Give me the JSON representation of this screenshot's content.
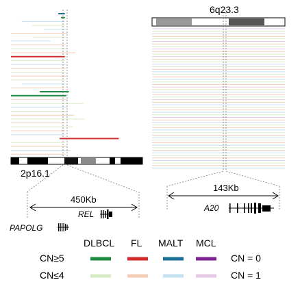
{
  "colors": {
    "DLBCL": "#1c8a3f",
    "FL": "#d32a2a",
    "MALT": "#1b6f96",
    "MCL": "#7c2291",
    "DLBCL_light": "#d7ebc6",
    "FL_light": "#f4cdb5",
    "MALT_light": "#c5e0f0",
    "MCL_light": "#e6c9e4"
  },
  "left_panel": {
    "region": "2p16.1",
    "span": "450Kb",
    "genes": [
      "REL",
      "PAPOLG"
    ],
    "segments": [
      {
        "row": 0,
        "start": 0.36,
        "end": 0.41,
        "cls": "MALT",
        "cn": "gain"
      },
      {
        "row": 1,
        "start": 0.38,
        "end": 0.41,
        "cls": "DLBCL",
        "cn": "gain"
      },
      {
        "row": 2,
        "start": 0.08,
        "end": 0.41,
        "cls": "MALT",
        "cn": "low"
      },
      {
        "row": 3,
        "start": 0.16,
        "end": 0.41,
        "cls": "DLBCL",
        "cn": "low"
      },
      {
        "row": 4,
        "start": 0.25,
        "end": 0.42,
        "cls": "MALT",
        "cn": "low"
      },
      {
        "row": 5,
        "start": 0.0,
        "end": 0.43,
        "cls": "FL",
        "cn": "low"
      },
      {
        "row": 6,
        "start": 0.17,
        "end": 0.42,
        "cls": "DLBCL",
        "cn": "low"
      },
      {
        "row": 7,
        "start": 0.0,
        "end": 0.3,
        "cls": "MALT",
        "cn": "low"
      },
      {
        "row": 8,
        "start": 0.0,
        "end": 0.41,
        "cls": "FL",
        "cn": "low"
      },
      {
        "row": 9,
        "start": 0.0,
        "end": 0.43,
        "cls": "DLBCL",
        "cn": "low"
      },
      {
        "row": 10,
        "start": 0.0,
        "end": 0.49,
        "cls": "FL",
        "cn": "low"
      },
      {
        "row": 11,
        "start": 0.0,
        "end": 0.41,
        "cls": "FL",
        "cn": "gain"
      },
      {
        "row": 12,
        "start": 0.0,
        "end": 0.41,
        "cls": "DLBCL",
        "cn": "low"
      },
      {
        "row": 13,
        "start": 0.0,
        "end": 0.42,
        "cls": "MALT",
        "cn": "low"
      },
      {
        "row": 14,
        "start": 0.0,
        "end": 0.42,
        "cls": "FL",
        "cn": "low"
      },
      {
        "row": 15,
        "start": 0.0,
        "end": 0.41,
        "cls": "DLBCL",
        "cn": "low"
      },
      {
        "row": 16,
        "start": 0.0,
        "end": 0.42,
        "cls": "FL",
        "cn": "low"
      },
      {
        "row": 17,
        "start": 0.0,
        "end": 0.41,
        "cls": "DLBCL",
        "cn": "low"
      },
      {
        "row": 18,
        "start": 0.08,
        "end": 0.41,
        "cls": "MALT",
        "cn": "low"
      },
      {
        "row": 19,
        "start": 0.0,
        "end": 0.41,
        "cls": "FL",
        "cn": "low"
      },
      {
        "row": 20,
        "start": 0.22,
        "end": 0.41,
        "cls": "DLBCL",
        "cn": "gain"
      },
      {
        "row": 20,
        "start": 0.41,
        "end": 0.44,
        "cls": "DLBCL",
        "cn": "gain"
      },
      {
        "row": 21,
        "start": 0.0,
        "end": 0.2,
        "cls": "DLBCL",
        "cn": "gain"
      },
      {
        "row": 21,
        "start": 0.2,
        "end": 0.42,
        "cls": "DLBCL",
        "cn": "gain"
      },
      {
        "row": 22,
        "start": 0.0,
        "end": 0.43,
        "cls": "FL",
        "cn": "low"
      },
      {
        "row": 23,
        "start": 0.0,
        "end": 0.55,
        "cls": "DLBCL",
        "cn": "low"
      },
      {
        "row": 24,
        "start": 0.0,
        "end": 0.43,
        "cls": "MALT",
        "cn": "low"
      },
      {
        "row": 25,
        "start": 0.0,
        "end": 0.43,
        "cls": "DLBCL",
        "cn": "low"
      },
      {
        "row": 26,
        "start": 0.0,
        "end": 0.48,
        "cls": "FL",
        "cn": "low"
      },
      {
        "row": 27,
        "start": 0.0,
        "end": 0.56,
        "cls": "DLBCL",
        "cn": "low"
      },
      {
        "row": 28,
        "start": 0.0,
        "end": 0.41,
        "cls": "FL",
        "cn": "low"
      },
      {
        "row": 29,
        "start": 0.0,
        "end": 0.47,
        "cls": "DLBCL",
        "cn": "low"
      },
      {
        "row": 30,
        "start": 0.0,
        "end": 0.41,
        "cls": "FL",
        "cn": "low"
      },
      {
        "row": 31,
        "start": 0.0,
        "end": 0.41,
        "cls": "MALT",
        "cn": "low"
      },
      {
        "row": 32,
        "start": 0.37,
        "end": 0.82,
        "cls": "FL",
        "cn": "gain"
      },
      {
        "row": 33,
        "start": 0.0,
        "end": 0.41,
        "cls": "DLBCL",
        "cn": "low"
      },
      {
        "row": 34,
        "start": 0.0,
        "end": 0.43,
        "cls": "FL",
        "cn": "low"
      },
      {
        "row": 35,
        "start": 0.0,
        "end": 0.45,
        "cls": "MALT",
        "cn": "low"
      },
      {
        "row": 36,
        "start": 0.0,
        "end": 0.41,
        "cls": "FL",
        "cn": "low"
      }
    ]
  },
  "right_panel": {
    "region": "6q23.3",
    "span": "143Kb",
    "gene": "A20",
    "segments": [
      {
        "row": 0,
        "start": 0.0,
        "end": 1.0,
        "cls": "MCL",
        "cn": "low"
      },
      {
        "row": 1,
        "start": 0.0,
        "end": 1.0,
        "cls": "DLBCL",
        "cn": "low"
      },
      {
        "row": 2,
        "start": 0.0,
        "end": 1.0,
        "cls": "MCL",
        "cn": "low"
      },
      {
        "row": 3,
        "start": 0.0,
        "end": 1.0,
        "cls": "FL",
        "cn": "low"
      },
      {
        "row": 4,
        "start": 0.0,
        "end": 1.0,
        "cls": "DLBCL",
        "cn": "low"
      },
      {
        "row": 5,
        "start": 0.0,
        "end": 1.0,
        "cls": "MCL",
        "cn": "low"
      },
      {
        "row": 6,
        "start": 0.0,
        "end": 1.0,
        "cls": "FL",
        "cn": "low"
      },
      {
        "row": 7,
        "start": 0.0,
        "end": 1.0,
        "cls": "DLBCL",
        "cn": "low"
      },
      {
        "row": 8,
        "start": 0.0,
        "end": 1.0,
        "cls": "MCL",
        "cn": "low"
      },
      {
        "row": 9,
        "start": 0.0,
        "end": 1.0,
        "cls": "FL",
        "cn": "low"
      },
      {
        "row": 10,
        "start": 0.0,
        "end": 1.0,
        "cls": "DLBCL",
        "cn": "low"
      },
      {
        "row": 11,
        "start": 0.0,
        "end": 1.0,
        "cls": "MCL",
        "cn": "low"
      },
      {
        "row": 12,
        "start": 0.0,
        "end": 1.0,
        "cls": "FL",
        "cn": "low"
      },
      {
        "row": 13,
        "start": 0.0,
        "end": 1.0,
        "cls": "DLBCL",
        "cn": "low"
      },
      {
        "row": 14,
        "start": 0.0,
        "end": 1.0,
        "cls": "MALT",
        "cn": "low"
      },
      {
        "row": 15,
        "start": 0.0,
        "end": 1.0,
        "cls": "DLBCL",
        "cn": "low"
      },
      {
        "row": 16,
        "start": 0.0,
        "end": 1.0,
        "cls": "FL",
        "cn": "low"
      },
      {
        "row": 17,
        "start": 0.0,
        "end": 1.0,
        "cls": "MALT",
        "cn": "low"
      },
      {
        "row": 18,
        "start": 0.0,
        "end": 1.0,
        "cls": "DLBCL",
        "cn": "low"
      },
      {
        "row": 19,
        "start": 0.0,
        "end": 1.0,
        "cls": "FL",
        "cn": "low"
      },
      {
        "row": 20,
        "start": 0.0,
        "end": 1.0,
        "cls": "MALT",
        "cn": "low"
      },
      {
        "row": 21,
        "start": 0.0,
        "end": 1.0,
        "cls": "DLBCL",
        "cn": "low"
      },
      {
        "row": 22,
        "start": 0.0,
        "end": 1.0,
        "cls": "FL",
        "cn": "low"
      },
      {
        "row": 23,
        "start": 0.0,
        "end": 1.0,
        "cls": "MCL",
        "cn": "low"
      },
      {
        "row": 24,
        "start": 0.0,
        "end": 1.0,
        "cls": "DLBCL",
        "cn": "low"
      },
      {
        "row": 25,
        "start": 0.0,
        "end": 1.0,
        "cls": "MALT",
        "cn": "low"
      },
      {
        "row": 26,
        "start": 0.0,
        "end": 1.0,
        "cls": "FL",
        "cn": "low"
      },
      {
        "row": 27,
        "start": 0.0,
        "end": 1.0,
        "cls": "DLBCL",
        "cn": "low"
      },
      {
        "row": 28,
        "start": 0.0,
        "end": 1.0,
        "cls": "MCL",
        "cn": "low"
      },
      {
        "row": 29,
        "start": 0.0,
        "end": 1.0,
        "cls": "FL",
        "cn": "low"
      },
      {
        "row": 30,
        "start": 0.0,
        "end": 1.0,
        "cls": "MALT",
        "cn": "low"
      },
      {
        "row": 31,
        "start": 0.0,
        "end": 1.0,
        "cls": "DLBCL",
        "cn": "low"
      },
      {
        "row": 32,
        "start": 0.0,
        "end": 1.0,
        "cls": "FL",
        "cn": "low"
      },
      {
        "row": 33,
        "start": 0.0,
        "end": 1.0,
        "cls": "MALT",
        "cn": "low"
      },
      {
        "row": 34,
        "start": 0.0,
        "end": 1.0,
        "cls": "DLBCL",
        "cn": "low"
      },
      {
        "row": 35,
        "start": 0.0,
        "end": 1.0,
        "cls": "MCL",
        "cn": "low"
      },
      {
        "row": 36,
        "start": 0.0,
        "end": 1.0,
        "cls": "FL",
        "cn": "low"
      },
      {
        "row": 37,
        "start": 0.0,
        "end": 1.0,
        "cls": "MALT",
        "cn": "low"
      },
      {
        "row": 38,
        "start": 0.0,
        "end": 1.0,
        "cls": "DLBCL",
        "cn": "low"
      },
      {
        "row": 39,
        "start": 0.0,
        "end": 1.0,
        "cls": "FL",
        "cn": "low"
      },
      {
        "row": 40,
        "start": 0.0,
        "end": 1.0,
        "cls": "MALT",
        "cn": "low"
      },
      {
        "row": 41,
        "start": 0.0,
        "end": 1.0,
        "cls": "DLBCL",
        "cn": "low"
      },
      {
        "row": 42,
        "start": 0.0,
        "end": 1.0,
        "cls": "FL",
        "cn": "low"
      },
      {
        "row": 43,
        "start": 0.0,
        "end": 1.0,
        "cls": "MALT",
        "cn": "low"
      },
      {
        "row": 44,
        "start": 0.0,
        "end": 1.0,
        "cls": "DLBCL",
        "cn": "low"
      },
      {
        "row": 45,
        "start": 0.0,
        "end": 1.0,
        "cls": "FL",
        "cn": "low"
      },
      {
        "row": 46,
        "start": 0.0,
        "end": 1.0,
        "cls": "MALT",
        "cn": "low"
      },
      {
        "row": 47,
        "start": 0.0,
        "end": 1.0,
        "cls": "DLBCL",
        "cn": "low"
      },
      {
        "row": 48,
        "start": 0.0,
        "end": 1.0,
        "cls": "FL",
        "cn": "low"
      },
      {
        "row": 49,
        "start": 0.0,
        "end": 1.0,
        "cls": "MALT",
        "cn": "low"
      },
      {
        "row": 50,
        "start": 0.0,
        "end": 1.0,
        "cls": "DLBCL",
        "cn": "low"
      },
      {
        "row": 51,
        "start": 0.0,
        "end": 1.0,
        "cls": "FL",
        "cn": "low"
      },
      {
        "row": 52,
        "start": 0.0,
        "end": 1.0,
        "cls": "MALT",
        "cn": "low"
      },
      {
        "row": 53,
        "start": 0.0,
        "end": 1.0,
        "cls": "DLBCL",
        "cn": "low"
      },
      {
        "row": 54,
        "start": 0.0,
        "end": 1.0,
        "cls": "FL",
        "cn": "low"
      },
      {
        "row": 55,
        "start": 0.0,
        "end": 1.0,
        "cls": "MALT",
        "cn": "low"
      }
    ]
  },
  "legend": {
    "columns": [
      "DLBCL",
      "FL",
      "MALT",
      "MCL"
    ],
    "row_gain": "CN≥5",
    "row_low": "CN≤4",
    "cn0": "CN = 0",
    "cn1": "CN = 1"
  }
}
